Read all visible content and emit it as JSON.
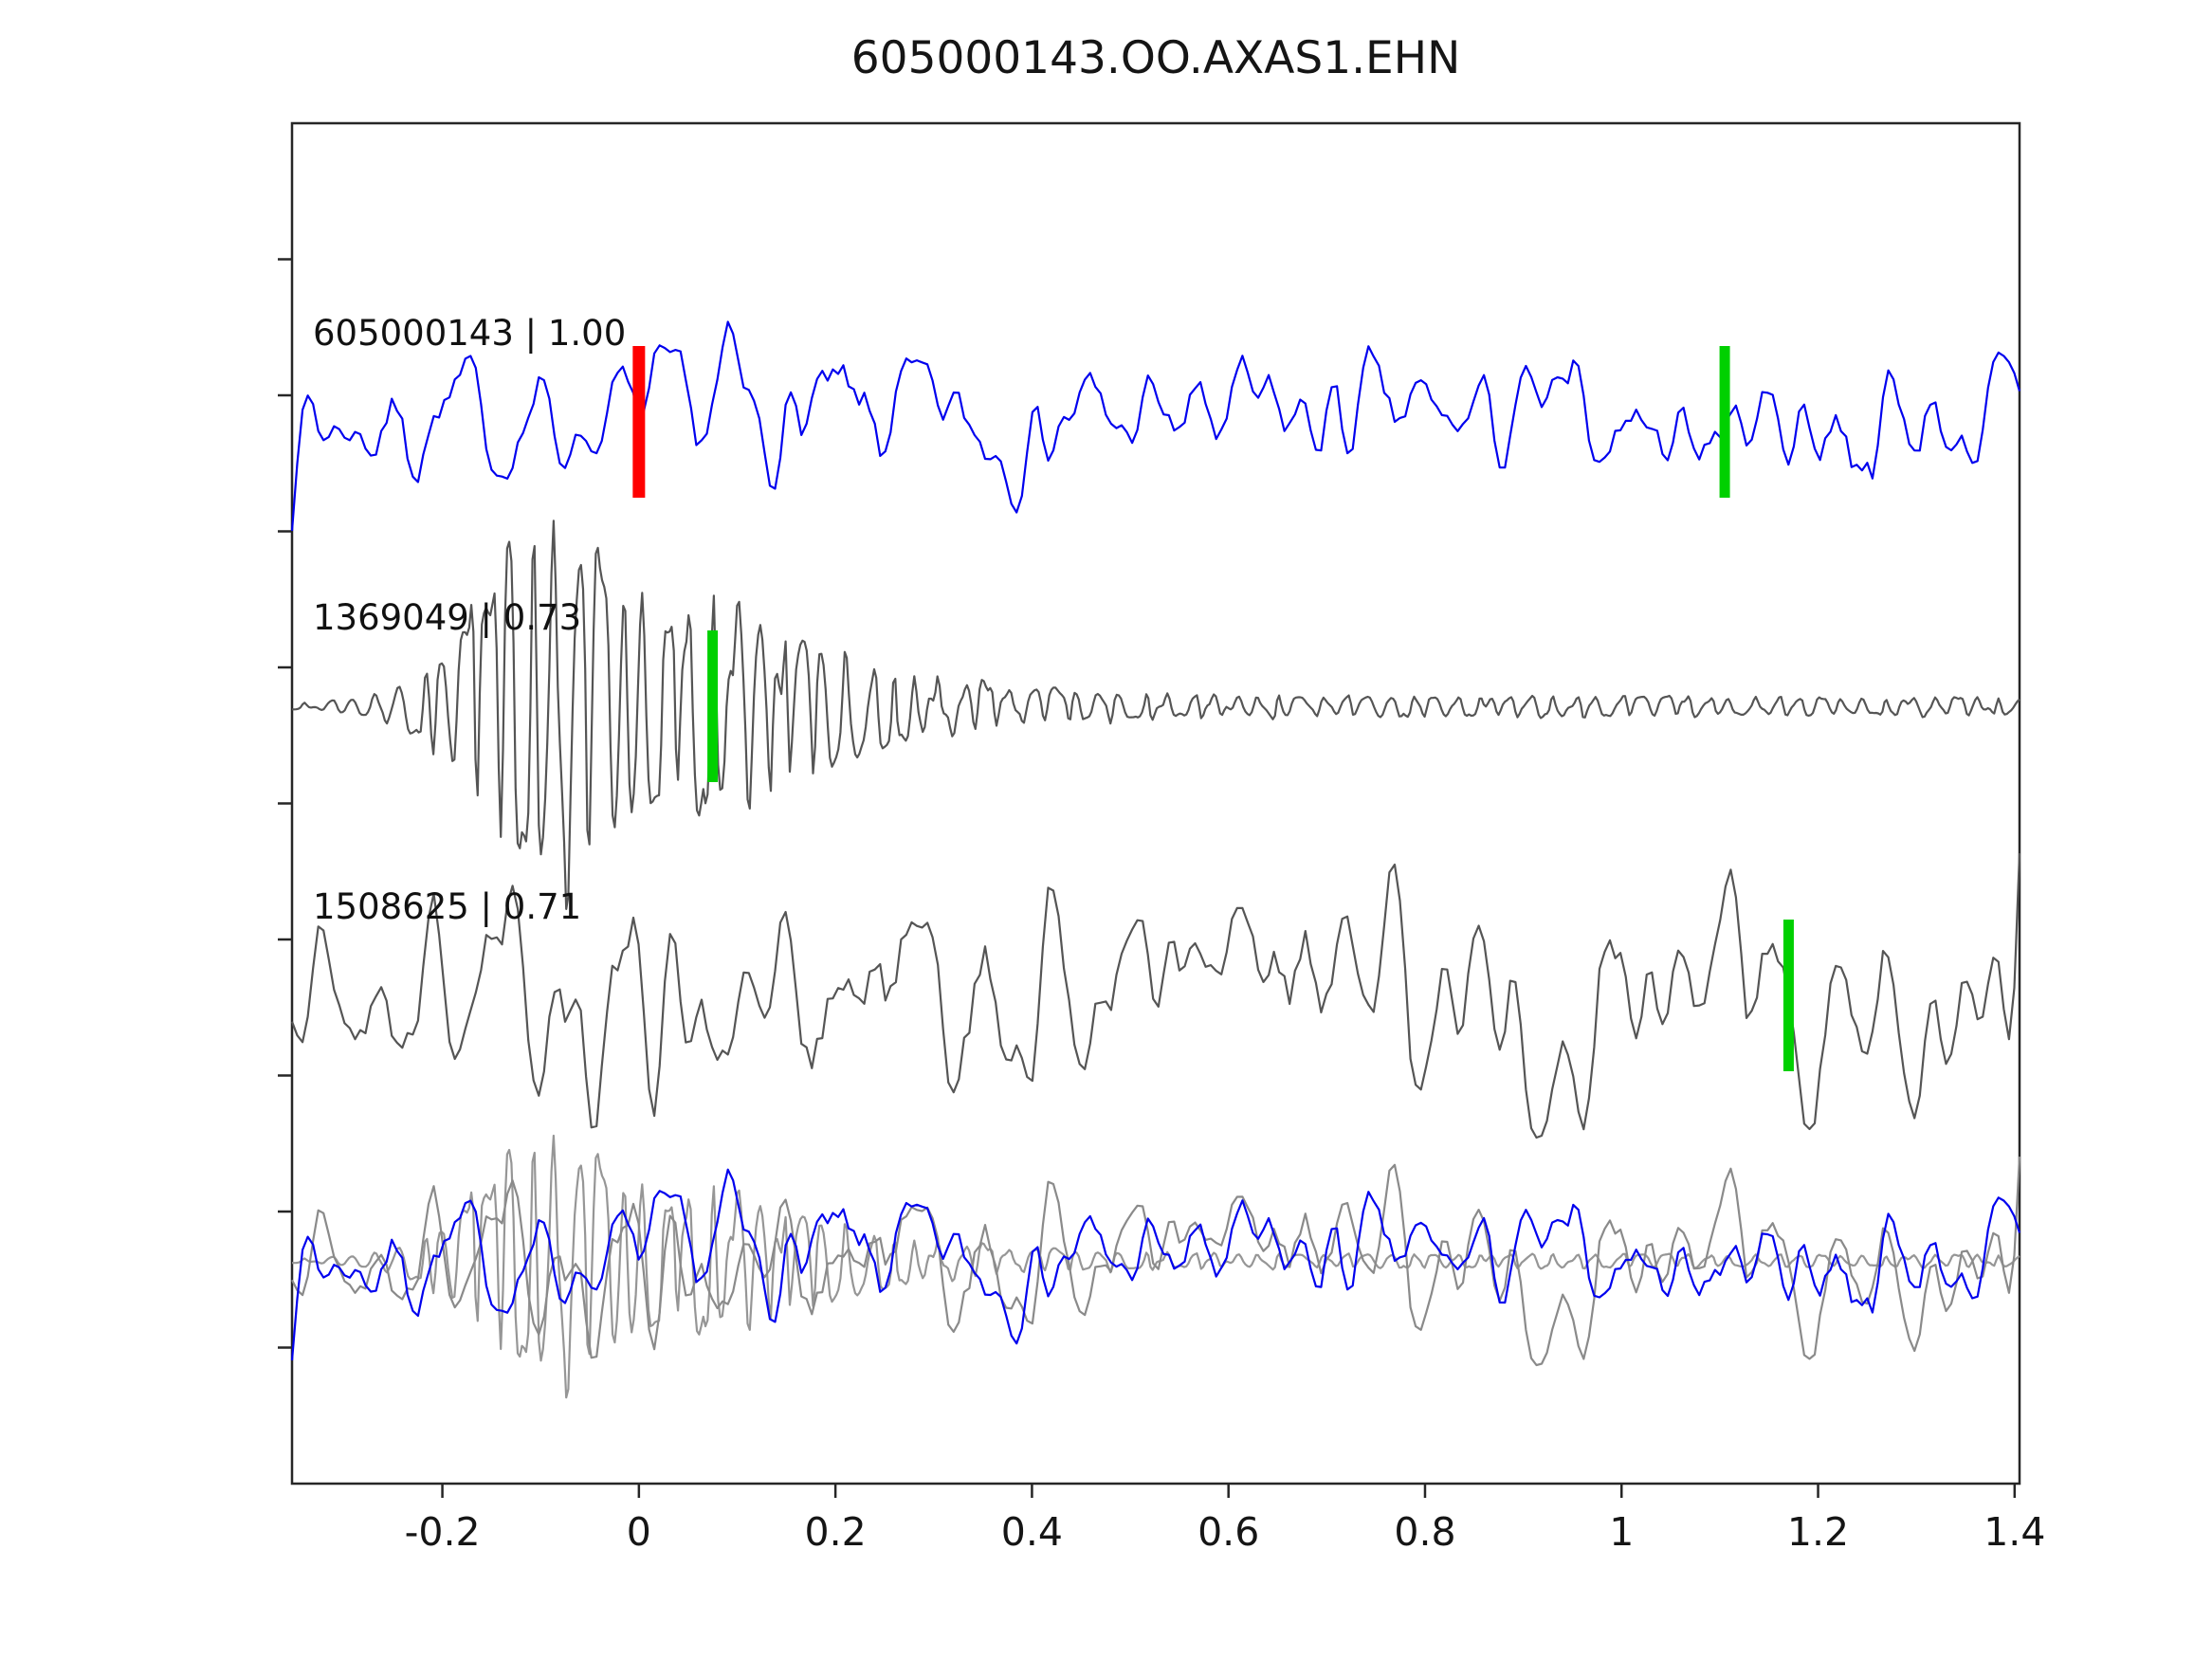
{
  "figure": {
    "title": "605000143.OO.AXAS1.EHN"
  },
  "chart_data": {
    "type": "line",
    "title": "605000143.OO.AXAS1.EHN",
    "xlabel": "",
    "ylabel": "",
    "xlim": [
      -0.353,
      1.405
    ],
    "xticks": [
      -0.2,
      0,
      0.2,
      0.4,
      0.6,
      0.8,
      1,
      1.2,
      1.4
    ],
    "xtick_labels": [
      "-0.2",
      "0",
      "0.2",
      "0.4",
      "0.6",
      "0.8",
      "1",
      "1.2",
      "1.4"
    ],
    "grid": false,
    "legend": "none",
    "axis_color": "#262626",
    "marker_colors": {
      "pick": "#00d000",
      "reference_pick": "#ff0000"
    },
    "rows": [
      {
        "name": "template-605000143",
        "label": "605000143 | 1.00",
        "correlation": 1.0,
        "waveform": "noise",
        "color": "#0000ee",
        "seed": 7,
        "envelope": [
          [
            -0.353,
            1.0
          ],
          [
            0.075,
            1.0
          ],
          [
            0.095,
            1.85
          ],
          [
            0.115,
            1.0
          ],
          [
            1.23,
            1.0
          ],
          [
            1.255,
            1.6
          ],
          [
            1.28,
            1.0
          ],
          [
            1.405,
            1.0
          ]
        ],
        "markers": [
          {
            "x": 0.0,
            "color": "#ff0000",
            "kind": "reference-pick"
          },
          {
            "x": 1.105,
            "color": "#00d000",
            "kind": "pick"
          }
        ]
      },
      {
        "name": "detection-1369049",
        "label": "1369049 | 0.73",
        "correlation": 0.73,
        "waveform": "quake",
        "color": "#555555",
        "seed": 13,
        "period": 0.023,
        "envelope": [
          [
            -0.353,
            0.02
          ],
          [
            -0.3,
            0.03
          ],
          [
            -0.24,
            0.1
          ],
          [
            -0.19,
            0.32
          ],
          [
            -0.145,
            0.75
          ],
          [
            -0.115,
            1.0
          ],
          [
            -0.085,
            1.0
          ],
          [
            -0.05,
            0.82
          ],
          [
            -0.02,
            0.62
          ],
          [
            0.03,
            0.52
          ],
          [
            0.09,
            0.55
          ],
          [
            0.14,
            0.4
          ],
          [
            0.2,
            0.28
          ],
          [
            0.28,
            0.17
          ],
          [
            0.38,
            0.1
          ],
          [
            0.5,
            0.07
          ],
          [
            0.7,
            0.05
          ],
          [
            0.95,
            0.06
          ],
          [
            1.2,
            0.045
          ],
          [
            1.405,
            0.05
          ]
        ],
        "markers": [
          {
            "x": 0.075,
            "color": "#00d000",
            "kind": "pick"
          }
        ]
      },
      {
        "name": "detection-1508625",
        "label": "1508625 | 0.71",
        "correlation": 0.71,
        "waveform": "noise",
        "color": "#555555",
        "seed": 21,
        "envelope": [
          [
            -0.353,
            1.0
          ],
          [
            0.75,
            1.0
          ],
          [
            0.78,
            1.75
          ],
          [
            0.81,
            1.0
          ],
          [
            1.405,
            1.0
          ]
        ],
        "markers": [
          {
            "x": 1.17,
            "color": "#00d000",
            "kind": "pick"
          }
        ]
      },
      {
        "name": "overlay-stack",
        "label": "",
        "waveform": "overlay",
        "markers": [],
        "components": [
          {
            "waveform": "quake",
            "seed": 13,
            "color": "#969696",
            "period": 0.023,
            "envelope_ref": 1
          },
          {
            "waveform": "noise",
            "seed": 21,
            "color": "#8a8a8a",
            "envelope_ref": 2
          },
          {
            "waveform": "noise",
            "seed": 7,
            "color": "#0000ee",
            "envelope_ref": 0
          }
        ]
      }
    ]
  }
}
